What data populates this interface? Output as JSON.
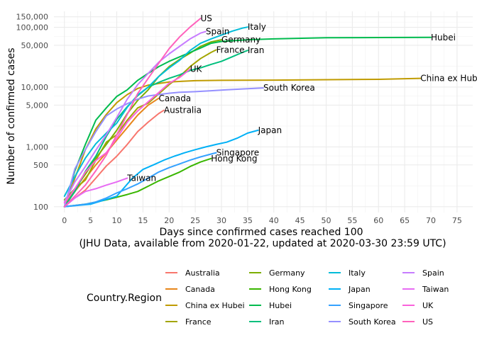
{
  "chart_data": {
    "type": "line",
    "xlabel": "Days since confirmed cases reached 100",
    "subtitle": "(JHU Data, available from 2020-01-22, updated at 2020-03-30 23:59 UTC)",
    "ylabel": "Number of confirmed cases",
    "y_scale": "log10",
    "xlim": [
      -2,
      78
    ],
    "ylim": [
      80,
      185000
    ],
    "x_ticks": [
      0,
      5,
      10,
      15,
      20,
      25,
      30,
      35,
      40,
      45,
      50,
      55,
      60,
      65,
      70,
      75
    ],
    "y_ticks": [
      100,
      500,
      1000,
      5000,
      10000,
      50000,
      100000,
      150000
    ],
    "y_tick_labels": [
      "100",
      "500",
      "1,000",
      "5,000",
      "10,000",
      "50,000",
      "100,000",
      "150,000"
    ],
    "grid": true,
    "legend_title": "Country.Region",
    "legend_position": "bottom",
    "series": [
      {
        "name": "Australia",
        "color": "#F8766D",
        "label": "Australia",
        "x": [
          0,
          2,
          4,
          6,
          8,
          10,
          12,
          14,
          16,
          18,
          19
        ],
        "y": [
          100,
          140,
          190,
          300,
          480,
          700,
          1100,
          1800,
          2600,
          3600,
          4100
        ]
      },
      {
        "name": "Canada",
        "color": "#E7861B",
        "label": "Canada",
        "x": [
          0,
          2,
          4,
          6,
          8,
          10,
          12,
          14,
          16,
          18
        ],
        "y": [
          100,
          180,
          300,
          500,
          800,
          1300,
          2100,
          3400,
          5000,
          6500
        ]
      },
      {
        "name": "China ex Hubei",
        "color": "#C09B00",
        "label": "China ex Hubei",
        "x": [
          0,
          2,
          4,
          6,
          8,
          10,
          12,
          14,
          16,
          18,
          20,
          25,
          30,
          40,
          50,
          60,
          68
        ],
        "y": [
          100,
          300,
          900,
          2000,
          3500,
          5500,
          7500,
          9500,
          10800,
          11500,
          12200,
          12800,
          13000,
          13100,
          13300,
          13500,
          14000
        ]
      },
      {
        "name": "France",
        "color": "#A3A500",
        "label": "France",
        "x": [
          0,
          2,
          4,
          6,
          8,
          10,
          12,
          14,
          16,
          18,
          20,
          22,
          24,
          26,
          28,
          29
        ],
        "y": [
          100,
          200,
          280,
          600,
          1200,
          1600,
          2800,
          4500,
          5400,
          7700,
          11000,
          15000,
          22000,
          30000,
          38000,
          42000
        ]
      },
      {
        "name": "Germany",
        "color": "#7CAE00",
        "label": "Germany",
        "x": [
          0,
          2,
          4,
          6,
          8,
          10,
          12,
          14,
          16,
          18,
          20,
          22,
          24,
          26,
          28,
          30
        ],
        "y": [
          130,
          200,
          350,
          650,
          1100,
          1900,
          3600,
          6000,
          9000,
          15000,
          22000,
          29000,
          37000,
          48000,
          57000,
          62000
        ]
      },
      {
        "name": "Hong Kong",
        "color": "#39B600",
        "label": "Hong Kong",
        "x": [
          0,
          4,
          8,
          12,
          14,
          16,
          18,
          20,
          22,
          24,
          26,
          28
        ],
        "y": [
          100,
          110,
          130,
          160,
          180,
          220,
          270,
          320,
          380,
          470,
          560,
          640
        ]
      },
      {
        "name": "Hubei",
        "color": "#00BB4E",
        "label": "Hubei",
        "x": [
          0,
          2,
          4,
          6,
          8,
          10,
          12,
          14,
          16,
          18,
          20,
          22,
          24,
          26,
          28,
          30,
          35,
          40,
          50,
          60,
          70
        ],
        "y": [
          100,
          400,
          1100,
          2800,
          4500,
          7000,
          9000,
          13000,
          17000,
          22000,
          27000,
          32000,
          38000,
          45000,
          54000,
          58000,
          62000,
          64000,
          67000,
          67500,
          67800
        ]
      },
      {
        "name": "Iran",
        "color": "#00BF7D",
        "label": "Iran",
        "x": [
          0,
          2,
          4,
          6,
          8,
          10,
          12,
          14,
          16,
          18,
          20,
          22,
          24,
          26,
          28,
          30,
          32,
          34,
          35
        ],
        "y": [
          100,
          180,
          390,
          700,
          1500,
          2900,
          4700,
          7200,
          10000,
          12000,
          14000,
          16000,
          19000,
          21000,
          24000,
          27000,
          32000,
          38000,
          41000
        ]
      },
      {
        "name": "Italy",
        "color": "#00BCD8",
        "label": "Italy",
        "x": [
          0,
          2,
          4,
          6,
          8,
          10,
          12,
          14,
          16,
          18,
          20,
          22,
          24,
          26,
          28,
          30,
          32,
          34,
          35
        ],
        "y": [
          150,
          320,
          650,
          1130,
          1700,
          2500,
          4600,
          7400,
          10000,
          15000,
          21000,
          28000,
          41000,
          54000,
          64000,
          74000,
          86000,
          97000,
          101000
        ]
      },
      {
        "name": "Japan",
        "color": "#00B0F6",
        "label": "Japan",
        "x": [
          0,
          5,
          10,
          13,
          15,
          17,
          19,
          21,
          23,
          25,
          27,
          29,
          31,
          33,
          35,
          37
        ],
        "y": [
          100,
          110,
          150,
          300,
          420,
          500,
          600,
          700,
          800,
          900,
          1000,
          1100,
          1200,
          1400,
          1700,
          1900
        ]
      },
      {
        "name": "Singapore",
        "color": "#35A2FF",
        "label": "Singapore",
        "x": [
          0,
          2,
          4,
          6,
          8,
          10,
          12,
          14,
          16,
          18,
          20,
          22,
          24,
          26,
          28,
          29
        ],
        "y": [
          100,
          105,
          110,
          120,
          140,
          170,
          200,
          240,
          300,
          380,
          450,
          520,
          600,
          680,
          760,
          800
        ]
      },
      {
        "name": "South Korea",
        "color": "#9590FF",
        "label": "South Korea",
        "x": [
          0,
          2,
          4,
          6,
          8,
          10,
          12,
          14,
          16,
          18,
          20,
          22,
          25,
          28,
          31,
          34,
          38
        ],
        "y": [
          100,
          430,
          900,
          1800,
          3300,
          4300,
          5300,
          6300,
          7100,
          7500,
          7900,
          8200,
          8400,
          8700,
          9000,
          9300,
          9700
        ]
      },
      {
        "name": "Spain",
        "color": "#C77CFF",
        "label": "Spain",
        "x": [
          0,
          2,
          4,
          6,
          8,
          10,
          12,
          14,
          16,
          18,
          20,
          22,
          24,
          26,
          27
        ],
        "y": [
          120,
          260,
          470,
          880,
          1600,
          3100,
          6300,
          11000,
          17000,
          26000,
          36000,
          48000,
          64000,
          80000,
          85000
        ]
      },
      {
        "name": "Taiwan",
        "color": "#E76BF3",
        "label": "Taiwan",
        "x": [
          0,
          2,
          4,
          6,
          8,
          10,
          12
        ],
        "y": [
          100,
          140,
          180,
          200,
          230,
          260,
          300
        ]
      },
      {
        "name": "UK",
        "color": "#FA62DB",
        "label": "UK",
        "x": [
          0,
          2,
          4,
          6,
          8,
          10,
          12,
          14,
          16,
          18,
          20,
          22,
          24
        ],
        "y": [
          115,
          200,
          380,
          590,
          800,
          1400,
          2600,
          4000,
          5700,
          8100,
          11600,
          14500,
          20000
        ]
      },
      {
        "name": "US",
        "color": "#FF62BC",
        "label": "US",
        "x": [
          0,
          2,
          4,
          6,
          8,
          10,
          12,
          14,
          16,
          18,
          20,
          22,
          24,
          26
        ],
        "y": [
          100,
          150,
          230,
          400,
          730,
          1600,
          3500,
          7800,
          14000,
          25000,
          44000,
          69000,
          101000,
          141000
        ]
      }
    ]
  }
}
